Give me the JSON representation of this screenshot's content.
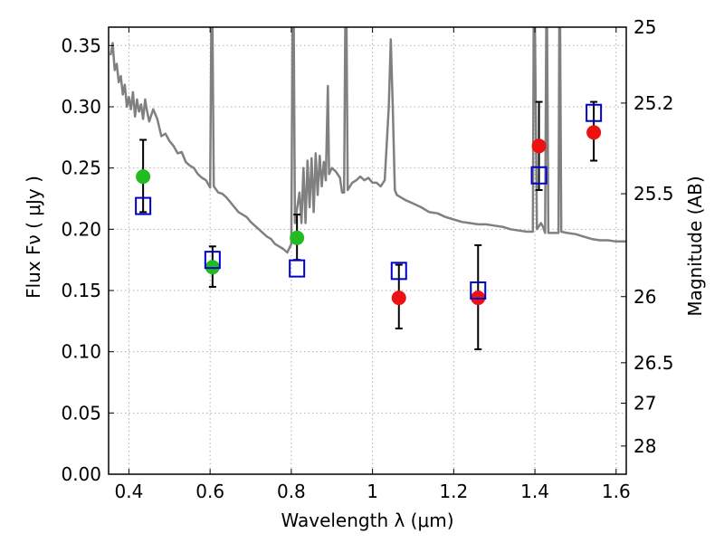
{
  "chart_data": {
    "type": "scatter",
    "xlabel": "Wavelength  λ (μm)",
    "ylabel": "Flux  Fν  ( μJy )",
    "ylabel_right": "Magnitude (AB)",
    "xlim": [
      0.35,
      1.625
    ],
    "ylim": [
      0.0,
      0.365
    ],
    "grid": true,
    "x_ticks": [
      0.4,
      0.6,
      0.8,
      1.0,
      1.2,
      1.4,
      1.6
    ],
    "x_tick_labels": [
      "0.4",
      "0.6",
      "0.8",
      "1",
      "1.2",
      "1.4",
      "1.6"
    ],
    "y_ticks": [
      0.0,
      0.05,
      0.1,
      0.15,
      0.2,
      0.25,
      0.3,
      0.35
    ],
    "y_tick_labels": [
      "0.00",
      "0.05",
      "0.10",
      "0.15",
      "0.20",
      "0.25",
      "0.30",
      "0.35"
    ],
    "right_ticks": [
      {
        "label": "25",
        "flux": 0.365
      },
      {
        "label": "25.2",
        "flux": 0.303
      },
      {
        "label": "25.5",
        "flux": 0.229
      },
      {
        "label": "26",
        "flux": 0.145
      },
      {
        "label": "26.5",
        "flux": 0.091
      },
      {
        "label": "27",
        "flux": 0.058
      },
      {
        "label": "28",
        "flux": 0.023
      }
    ],
    "colors": {
      "spectrum": "#808080",
      "optical_points": "#22bb22",
      "nir_points": "#ee1111",
      "model_points": "#0000cc",
      "grid": "#b0b0b0"
    },
    "series": [
      {
        "kind": "observed",
        "color": "#22bb22",
        "points": [
          {
            "x": 0.435,
            "y": 0.243,
            "yerr_low": 0.214,
            "yerr_high": 0.273
          },
          {
            "x": 0.606,
            "y": 0.169,
            "yerr_low": 0.153,
            "yerr_high": 0.186
          },
          {
            "x": 0.814,
            "y": 0.193,
            "yerr_low": 0.175,
            "yerr_high": 0.212
          }
        ]
      },
      {
        "kind": "observed",
        "color": "#ee1111",
        "points": [
          {
            "x": 1.065,
            "y": 0.144,
            "yerr_low": 0.119,
            "yerr_high": 0.171
          },
          {
            "x": 1.26,
            "y": 0.144,
            "yerr_low": 0.102,
            "yerr_high": 0.187
          },
          {
            "x": 1.41,
            "y": 0.268,
            "yerr_low": 0.232,
            "yerr_high": 0.304
          },
          {
            "x": 1.545,
            "y": 0.279,
            "yerr_low": 0.256,
            "yerr_high": 0.304
          }
        ]
      },
      {
        "kind": "model",
        "color": "#0000cc",
        "points": [
          {
            "x": 0.435,
            "y": 0.219
          },
          {
            "x": 0.606,
            "y": 0.175
          },
          {
            "x": 0.814,
            "y": 0.168
          },
          {
            "x": 1.065,
            "y": 0.166
          },
          {
            "x": 1.26,
            "y": 0.15
          },
          {
            "x": 1.41,
            "y": 0.244
          },
          {
            "x": 1.545,
            "y": 0.295
          }
        ]
      }
    ],
    "spectrum": [
      [
        0.355,
        0.342
      ],
      [
        0.36,
        0.352
      ],
      [
        0.365,
        0.33
      ],
      [
        0.37,
        0.335
      ],
      [
        0.375,
        0.32
      ],
      [
        0.38,
        0.325
      ],
      [
        0.385,
        0.31
      ],
      [
        0.39,
        0.318
      ],
      [
        0.395,
        0.3
      ],
      [
        0.4,
        0.308
      ],
      [
        0.405,
        0.298
      ],
      [
        0.41,
        0.312
      ],
      [
        0.415,
        0.292
      ],
      [
        0.42,
        0.306
      ],
      [
        0.425,
        0.296
      ],
      [
        0.43,
        0.302
      ],
      [
        0.435,
        0.29
      ],
      [
        0.44,
        0.306
      ],
      [
        0.445,
        0.296
      ],
      [
        0.45,
        0.288
      ],
      [
        0.46,
        0.298
      ],
      [
        0.47,
        0.29
      ],
      [
        0.48,
        0.276
      ],
      [
        0.49,
        0.278
      ],
      [
        0.5,
        0.272
      ],
      [
        0.51,
        0.268
      ],
      [
        0.52,
        0.262
      ],
      [
        0.53,
        0.263
      ],
      [
        0.54,
        0.255
      ],
      [
        0.55,
        0.252
      ],
      [
        0.56,
        0.25
      ],
      [
        0.57,
        0.245
      ],
      [
        0.58,
        0.242
      ],
      [
        0.59,
        0.24
      ],
      [
        0.6,
        0.234
      ],
      [
        0.603,
        0.365
      ],
      [
        0.606,
        0.365
      ],
      [
        0.609,
        0.235
      ],
      [
        0.62,
        0.23
      ],
      [
        0.63,
        0.229
      ],
      [
        0.64,
        0.226
      ],
      [
        0.65,
        0.222
      ],
      [
        0.66,
        0.218
      ],
      [
        0.67,
        0.214
      ],
      [
        0.68,
        0.212
      ],
      [
        0.69,
        0.21
      ],
      [
        0.7,
        0.206
      ],
      [
        0.71,
        0.203
      ],
      [
        0.72,
        0.2
      ],
      [
        0.73,
        0.197
      ],
      [
        0.74,
        0.194
      ],
      [
        0.75,
        0.192
      ],
      [
        0.76,
        0.188
      ],
      [
        0.77,
        0.186
      ],
      [
        0.78,
        0.184
      ],
      [
        0.79,
        0.181
      ],
      [
        0.8,
        0.188
      ],
      [
        0.803,
        0.365
      ],
      [
        0.806,
        0.365
      ],
      [
        0.809,
        0.205
      ],
      [
        0.82,
        0.23
      ],
      [
        0.825,
        0.205
      ],
      [
        0.83,
        0.25
      ],
      [
        0.835,
        0.205
      ],
      [
        0.84,
        0.256
      ],
      [
        0.845,
        0.218
      ],
      [
        0.85,
        0.258
      ],
      [
        0.855,
        0.214
      ],
      [
        0.86,
        0.262
      ],
      [
        0.865,
        0.228
      ],
      [
        0.87,
        0.26
      ],
      [
        0.875,
        0.235
      ],
      [
        0.88,
        0.255
      ],
      [
        0.885,
        0.24
      ],
      [
        0.89,
        0.317
      ],
      [
        0.893,
        0.245
      ],
      [
        0.9,
        0.25
      ],
      [
        0.91,
        0.247
      ],
      [
        0.92,
        0.242
      ],
      [
        0.925,
        0.23
      ],
      [
        0.93,
        0.23
      ],
      [
        0.933,
        0.365
      ],
      [
        0.936,
        0.365
      ],
      [
        0.939,
        0.232
      ],
      [
        0.95,
        0.238
      ],
      [
        0.96,
        0.24
      ],
      [
        0.97,
        0.243
      ],
      [
        0.98,
        0.24
      ],
      [
        0.99,
        0.242
      ],
      [
        1.0,
        0.238
      ],
      [
        1.01,
        0.238
      ],
      [
        1.02,
        0.235
      ],
      [
        1.03,
        0.24
      ],
      [
        1.04,
        0.3
      ],
      [
        1.045,
        0.355
      ],
      [
        1.05,
        0.3
      ],
      [
        1.055,
        0.232
      ],
      [
        1.06,
        0.228
      ],
      [
        1.08,
        0.224
      ],
      [
        1.1,
        0.221
      ],
      [
        1.12,
        0.218
      ],
      [
        1.14,
        0.214
      ],
      [
        1.16,
        0.213
      ],
      [
        1.18,
        0.21
      ],
      [
        1.2,
        0.208
      ],
      [
        1.22,
        0.206
      ],
      [
        1.24,
        0.205
      ],
      [
        1.26,
        0.204
      ],
      [
        1.28,
        0.204
      ],
      [
        1.3,
        0.203
      ],
      [
        1.32,
        0.202
      ],
      [
        1.34,
        0.2
      ],
      [
        1.36,
        0.199
      ],
      [
        1.38,
        0.198
      ],
      [
        1.395,
        0.198
      ],
      [
        1.397,
        0.365
      ],
      [
        1.4,
        0.365
      ],
      [
        1.405,
        0.2
      ],
      [
        1.415,
        0.205
      ],
      [
        1.42,
        0.202
      ],
      [
        1.425,
        0.197
      ],
      [
        1.428,
        0.365
      ],
      [
        1.43,
        0.365
      ],
      [
        1.433,
        0.197
      ],
      [
        1.45,
        0.197
      ],
      [
        1.458,
        0.197
      ],
      [
        1.46,
        0.365
      ],
      [
        1.462,
        0.365
      ],
      [
        1.465,
        0.198
      ],
      [
        1.48,
        0.197
      ],
      [
        1.5,
        0.196
      ],
      [
        1.52,
        0.194
      ],
      [
        1.54,
        0.192
      ],
      [
        1.56,
        0.191
      ],
      [
        1.58,
        0.191
      ],
      [
        1.6,
        0.19
      ],
      [
        1.625,
        0.19
      ]
    ]
  }
}
